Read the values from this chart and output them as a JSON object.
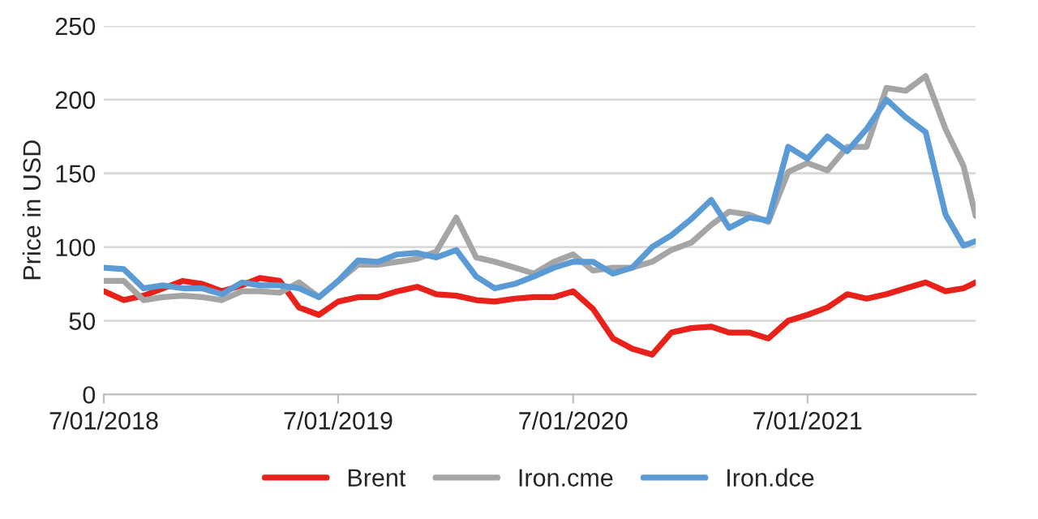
{
  "chart_data": {
    "type": "line",
    "ylabel": "Price in USD",
    "x": [
      "2018-07-01",
      "2018-08-01",
      "2018-09-01",
      "2018-10-01",
      "2018-11-01",
      "2018-12-01",
      "2019-01-01",
      "2019-02-01",
      "2019-03-01",
      "2019-04-01",
      "2019-05-01",
      "2019-06-01",
      "2019-07-01",
      "2019-08-01",
      "2019-09-01",
      "2019-10-01",
      "2019-11-01",
      "2019-12-01",
      "2020-01-01",
      "2020-02-01",
      "2020-03-01",
      "2020-04-01",
      "2020-05-01",
      "2020-06-01",
      "2020-07-01",
      "2020-08-01",
      "2020-09-01",
      "2020-10-01",
      "2020-11-01",
      "2020-12-01",
      "2021-01-01",
      "2021-02-01",
      "2021-03-01",
      "2021-04-01",
      "2021-05-01",
      "2021-06-01",
      "2021-07-01",
      "2021-08-01",
      "2021-09-01",
      "2021-10-01",
      "2021-11-01",
      "2021-12-01",
      "2022-01-01",
      "2022-02-01",
      "2022-03-01",
      "2022-03-20"
    ],
    "series": [
      {
        "name": "Brent",
        "color": "#e8221b",
        "values": [
          70,
          64,
          67,
          72,
          77,
          75,
          70,
          74,
          79,
          77,
          59,
          54,
          63,
          66,
          66,
          70,
          73,
          68,
          67,
          64,
          63,
          65,
          66,
          66,
          70,
          58,
          38,
          31,
          27,
          42,
          45,
          46,
          42,
          42,
          38,
          50,
          54,
          59,
          68,
          65,
          68,
          72,
          76,
          70,
          72,
          76
        ]
      },
      {
        "name": "Iron.cme",
        "color": "#a5a5a5",
        "values": [
          77,
          77,
          64,
          66,
          67,
          66,
          64,
          70,
          70,
          69,
          76,
          66,
          77,
          88,
          88,
          90,
          92,
          97,
          120,
          93,
          90,
          86,
          82,
          90,
          95,
          84,
          86,
          86,
          90,
          98,
          103,
          115,
          124,
          122,
          117,
          151,
          157,
          152,
          168,
          168,
          208,
          206,
          216,
          180,
          155,
          121
        ]
      },
      {
        "name": "Iron.dce",
        "color": "#5b9bd5",
        "values": [
          86,
          85,
          72,
          74,
          72,
          72,
          68,
          76,
          74,
          74,
          72,
          66,
          77,
          91,
          90,
          95,
          96,
          93,
          98,
          80,
          72,
          75,
          80,
          86,
          90,
          90,
          82,
          86,
          100,
          108,
          119,
          132,
          113,
          120,
          118,
          168,
          160,
          175,
          165,
          180,
          200,
          188,
          178,
          122,
          101,
          104
        ]
      }
    ],
    "xlim": [
      "2018-07-01",
      "2022-03-20"
    ],
    "xticks": [
      {
        "value": "2018-07-01",
        "label": "7/01/2018"
      },
      {
        "value": "2019-07-01",
        "label": "7/01/2019"
      },
      {
        "value": "2020-07-01",
        "label": "7/01/2020"
      },
      {
        "value": "2021-07-01",
        "label": "7/01/2021"
      }
    ],
    "ylim": [
      0,
      250
    ],
    "yticks": [
      0,
      50,
      100,
      150,
      200,
      250
    ],
    "grid": "y",
    "legend": "bottom",
    "line_style": "solid",
    "marker": "none"
  }
}
